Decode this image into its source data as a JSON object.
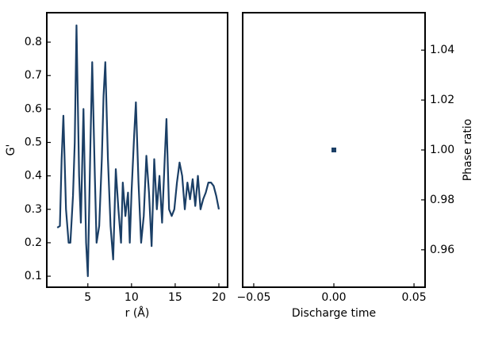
{
  "chart_data": [
    {
      "type": "line",
      "xlabel": "r (Å)",
      "ylabel": "G'",
      "color": "#1b3f66",
      "y_axis_side": "left",
      "x": [
        1.5,
        1.8,
        2.0,
        2.2,
        2.5,
        2.8,
        3.0,
        3.3,
        3.5,
        3.7,
        4.0,
        4.2,
        4.5,
        4.8,
        5.0,
        5.3,
        5.5,
        5.8,
        6.0,
        6.3,
        6.6,
        6.8,
        7.0,
        7.3,
        7.6,
        7.9,
        8.2,
        8.5,
        8.8,
        9.0,
        9.3,
        9.6,
        9.8,
        10.0,
        10.3,
        10.5,
        10.8,
        11.1,
        11.4,
        11.7,
        12.0,
        12.3,
        12.6,
        12.9,
        13.2,
        13.5,
        13.8,
        14.0,
        14.3,
        14.6,
        14.9,
        15.2,
        15.5,
        15.8,
        16.1,
        16.4,
        16.7,
        17.0,
        17.3,
        17.6,
        17.9,
        18.2,
        18.5,
        18.8,
        19.1,
        19.4,
        19.7,
        20.0
      ],
      "values": [
        0.245,
        0.25,
        0.45,
        0.58,
        0.3,
        0.2,
        0.2,
        0.34,
        0.5,
        0.85,
        0.4,
        0.26,
        0.6,
        0.2,
        0.1,
        0.5,
        0.74,
        0.4,
        0.2,
        0.25,
        0.45,
        0.64,
        0.74,
        0.45,
        0.25,
        0.15,
        0.42,
        0.3,
        0.2,
        0.38,
        0.28,
        0.35,
        0.2,
        0.35,
        0.52,
        0.62,
        0.38,
        0.2,
        0.28,
        0.46,
        0.35,
        0.19,
        0.45,
        0.3,
        0.4,
        0.26,
        0.45,
        0.57,
        0.3,
        0.28,
        0.3,
        0.38,
        0.44,
        0.4,
        0.3,
        0.38,
        0.33,
        0.39,
        0.31,
        0.4,
        0.3,
        0.33,
        0.35,
        0.38,
        0.38,
        0.37,
        0.34,
        0.3
      ],
      "xlim": [
        0.3,
        21
      ],
      "ylim": [
        0.067,
        0.888
      ],
      "xticks": [
        5,
        10,
        15,
        20
      ],
      "yticks": [
        0.1,
        0.2,
        0.3,
        0.4,
        0.5,
        0.6,
        0.7,
        0.8
      ]
    },
    {
      "type": "scatter",
      "xlabel": "Discharge time",
      "ylabel": "Phase ratio",
      "color": "#1b3f66",
      "y_axis_side": "right",
      "x": [
        0
      ],
      "values": [
        1.0
      ],
      "xlim": [
        -0.0569,
        0.0569
      ],
      "ylim": [
        0.945,
        1.055
      ],
      "xticks": [
        {
          "value": -0.05,
          "label": "−0.05"
        },
        {
          "value": 0,
          "label": "0.00"
        },
        {
          "value": 0.05,
          "label": "0.05"
        }
      ],
      "yticks": [
        {
          "value": 0.96,
          "label": "0.96"
        },
        {
          "value": 0.98,
          "label": "0.98"
        },
        {
          "value": 1.0,
          "label": "1.00"
        },
        {
          "value": 1.02,
          "label": "1.02"
        },
        {
          "value": 1.04,
          "label": "1.04"
        }
      ]
    }
  ]
}
